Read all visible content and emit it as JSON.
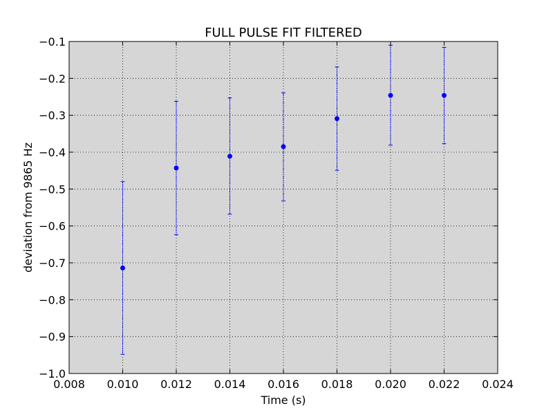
{
  "chart_data": {
    "type": "scatter",
    "title": "FULL PULSE FIT FILTERED",
    "xlabel": "Time (s)",
    "ylabel": "deviation from 9865 Hz",
    "xlim": [
      0.008,
      0.024
    ],
    "ylim": [
      -1.0,
      -0.1
    ],
    "x_ticks": [
      "0.008",
      "0.010",
      "0.012",
      "0.014",
      "0.016",
      "0.018",
      "0.020",
      "0.022",
      "0.024"
    ],
    "y_ticks": [
      "−0.1",
      "−0.2",
      "−0.3",
      "−0.4",
      "−0.5",
      "−0.6",
      "−0.7",
      "−0.8",
      "−0.9",
      "−1.0"
    ],
    "grid": true,
    "background": "#d6d6d6",
    "marker_color": "#0000ff",
    "series": [
      {
        "x": [
          0.01,
          0.012,
          0.014,
          0.016,
          0.018,
          0.02,
          0.022
        ],
        "y": [
          -0.714,
          -0.443,
          -0.411,
          -0.385,
          -0.309,
          -0.246,
          -0.246
        ],
        "yerr_low": [
          -0.948,
          -0.624,
          -0.568,
          -0.532,
          -0.449,
          -0.381,
          -0.377
        ],
        "yerr_high": [
          -0.48,
          -0.262,
          -0.253,
          -0.239,
          -0.169,
          -0.11,
          -0.116
        ]
      }
    ]
  }
}
